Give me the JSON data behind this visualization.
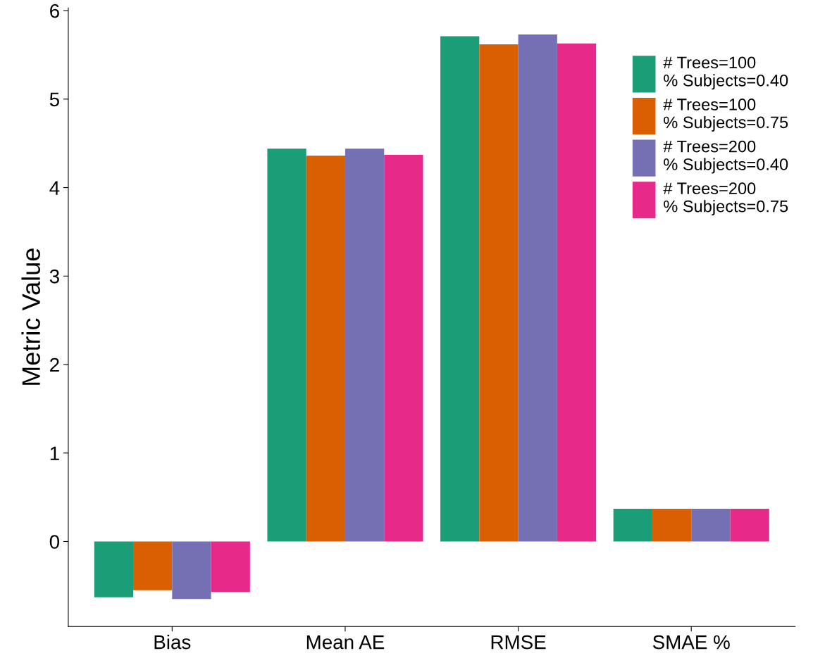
{
  "chart_data": {
    "type": "bar",
    "ylabel": "Metric Value",
    "categories": [
      "Bias",
      "Mean AE",
      "RMSE",
      "SMAE %"
    ],
    "series": [
      {
        "name": "# Trees=100\n% Subjects=0.40",
        "color": "#1b9e77",
        "values": [
          -0.63,
          4.44,
          5.71,
          0.37
        ]
      },
      {
        "name": "# Trees=100\n% Subjects=0.75",
        "color": "#d95f02",
        "values": [
          -0.55,
          4.36,
          5.62,
          0.37
        ]
      },
      {
        "name": "# Trees=200\n% Subjects=0.40",
        "color": "#7570b3",
        "values": [
          -0.65,
          4.44,
          5.73,
          0.37
        ]
      },
      {
        "name": "# Trees=200\n% Subjects=0.75",
        "color": "#e7298a",
        "values": [
          -0.57,
          4.37,
          5.63,
          0.37
        ]
      }
    ],
    "ylim": [
      -0.96,
      6.03
    ],
    "yticks": [
      0,
      1,
      2,
      3,
      4,
      5,
      6
    ],
    "grid": false,
    "legend": "top right"
  }
}
